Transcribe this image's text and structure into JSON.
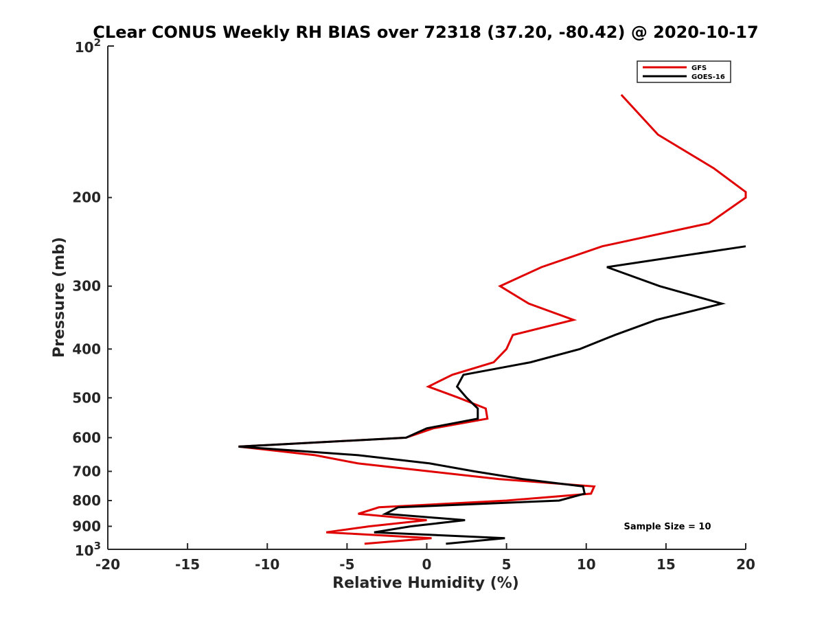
{
  "chart_data": {
    "type": "line",
    "title": "CLear CONUS Weekly RH BIAS over 72318 (37.20, -80.42) @ 2020-10-17",
    "xlabel": "Relative Humidity (%)",
    "ylabel": "Pressure (mb)",
    "xlim": [
      -20,
      20
    ],
    "ylim": [
      100,
      1000
    ],
    "yscale": "log",
    "y_reversed": true,
    "grid": false,
    "legend_position": "top-right",
    "x_ticks": [
      -20,
      -15,
      -10,
      -5,
      0,
      5,
      10,
      15,
      20
    ],
    "x_tick_labels": [
      "-20",
      "-15",
      "-10",
      "-5",
      "0",
      "5",
      "10",
      "15",
      "20"
    ],
    "y_ticks": [
      200,
      300,
      400,
      500,
      600,
      700,
      800,
      900
    ],
    "y_tick_labels": [
      "200",
      "300",
      "400",
      "500",
      "600",
      "700",
      "800",
      "900"
    ],
    "y_top_label": {
      "base": "10",
      "exp": "2"
    },
    "y_bottom_label": {
      "base": "10",
      "exp": "3"
    },
    "annotation": "Sample Size = 10",
    "series": [
      {
        "name": "GFS",
        "color": "#e00000",
        "points": [
          [
            12.2,
            125
          ],
          [
            14.5,
            150
          ],
          [
            18,
            175
          ],
          [
            20,
            195
          ],
          [
            20,
            200
          ],
          [
            17.7,
            225
          ],
          [
            11,
            250
          ],
          [
            7.2,
            275
          ],
          [
            4.6,
            300
          ],
          [
            6.4,
            325
          ],
          [
            9.2,
            350
          ],
          [
            5.4,
            375
          ],
          [
            5,
            400
          ],
          [
            4.2,
            425
          ],
          [
            1.6,
            450
          ],
          [
            0.1,
            475
          ],
          [
            2,
            500
          ],
          [
            3.7,
            525
          ],
          [
            3.8,
            550
          ],
          [
            0.4,
            575
          ],
          [
            -1.3,
            600
          ],
          [
            -11.8,
            625
          ],
          [
            -7,
            650
          ],
          [
            -4.3,
            675
          ],
          [
            0.2,
            700
          ],
          [
            4.5,
            725
          ],
          [
            10.5,
            750
          ],
          [
            10.3,
            775
          ],
          [
            5,
            800
          ],
          [
            -3,
            825
          ],
          [
            -4.3,
            850
          ],
          [
            0,
            875
          ],
          [
            -3.6,
            900
          ],
          [
            -6.3,
            925
          ],
          [
            0.3,
            950
          ],
          [
            -3.9,
            975
          ]
        ]
      },
      {
        "name": "GOES-16",
        "color": "#000000",
        "points": [
          [
            20,
            250
          ],
          [
            11.3,
            275
          ],
          [
            14.6,
            300
          ],
          [
            18.5,
            325
          ],
          [
            14.4,
            350
          ],
          [
            11.8,
            375
          ],
          [
            9.6,
            400
          ],
          [
            6.5,
            425
          ],
          [
            2.3,
            450
          ],
          [
            1.9,
            475
          ],
          [
            2.5,
            500
          ],
          [
            3.2,
            525
          ],
          [
            3.2,
            550
          ],
          [
            0,
            575
          ],
          [
            -1.3,
            600
          ],
          [
            -11.8,
            625
          ],
          [
            -4.3,
            650
          ],
          [
            0.2,
            675
          ],
          [
            3,
            700
          ],
          [
            6,
            725
          ],
          [
            9.8,
            750
          ],
          [
            9.9,
            775
          ],
          [
            8.3,
            800
          ],
          [
            -1.8,
            825
          ],
          [
            -2.6,
            850
          ],
          [
            2.4,
            875
          ],
          [
            -1,
            900
          ],
          [
            -3.3,
            925
          ],
          [
            4.9,
            950
          ],
          [
            1.2,
            975
          ]
        ]
      }
    ]
  }
}
